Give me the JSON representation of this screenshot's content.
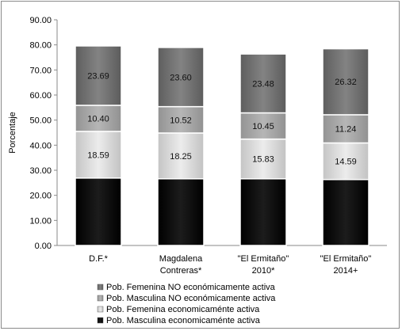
{
  "chart_data": {
    "type": "bar",
    "stacked": true,
    "ylabel": "Porcentaje",
    "ylim": [
      0,
      90
    ],
    "yticks": [
      "0.00",
      "10.00",
      "20.00",
      "30.00",
      "40.00",
      "50.00",
      "60.00",
      "70.00",
      "80.00",
      "90.00"
    ],
    "categories": [
      [
        "D.F.*"
      ],
      [
        "Magdalena",
        "Contreras*"
      ],
      [
        "\"El Ermitaño\"",
        "2010*"
      ],
      [
        "\"El Ermitaño\"",
        "2014+"
      ]
    ],
    "series": [
      {
        "name": "Pob. Masculina economicaménte activa",
        "color": "#000000",
        "values": [
          26.9,
          26.6,
          26.6,
          26.3
        ]
      },
      {
        "name": "Pob. Femenina economicaménte activa",
        "color": "#d6d6d6",
        "values": [
          18.59,
          18.25,
          15.83,
          14.59
        ]
      },
      {
        "name": "Pob. Masculina NO económicamente activa",
        "color": "#a4a4a4",
        "values": [
          10.4,
          10.52,
          10.45,
          11.24
        ]
      },
      {
        "name": "Pob. Femenina NO económicamente activa",
        "color": "#707070",
        "values": [
          23.69,
          23.6,
          23.48,
          26.32
        ]
      }
    ],
    "data_labels": [
      [
        null,
        "18.59",
        "10.40",
        "23.69"
      ],
      [
        null,
        "18.25",
        "10.52",
        "23.60"
      ],
      [
        null,
        "15.83",
        "10.45",
        "23.48"
      ],
      [
        null,
        "14.59",
        "11.24",
        "26.32"
      ]
    ],
    "legend": {
      "placement": "bottom",
      "order": [
        "Pob. Femenina NO económicamente activa",
        "Pob. Masculina NO económicamente activa",
        "Pob. Femenina economicaménte activa",
        "Pob. Masculina economicaménte activa"
      ]
    },
    "grid": false
  }
}
